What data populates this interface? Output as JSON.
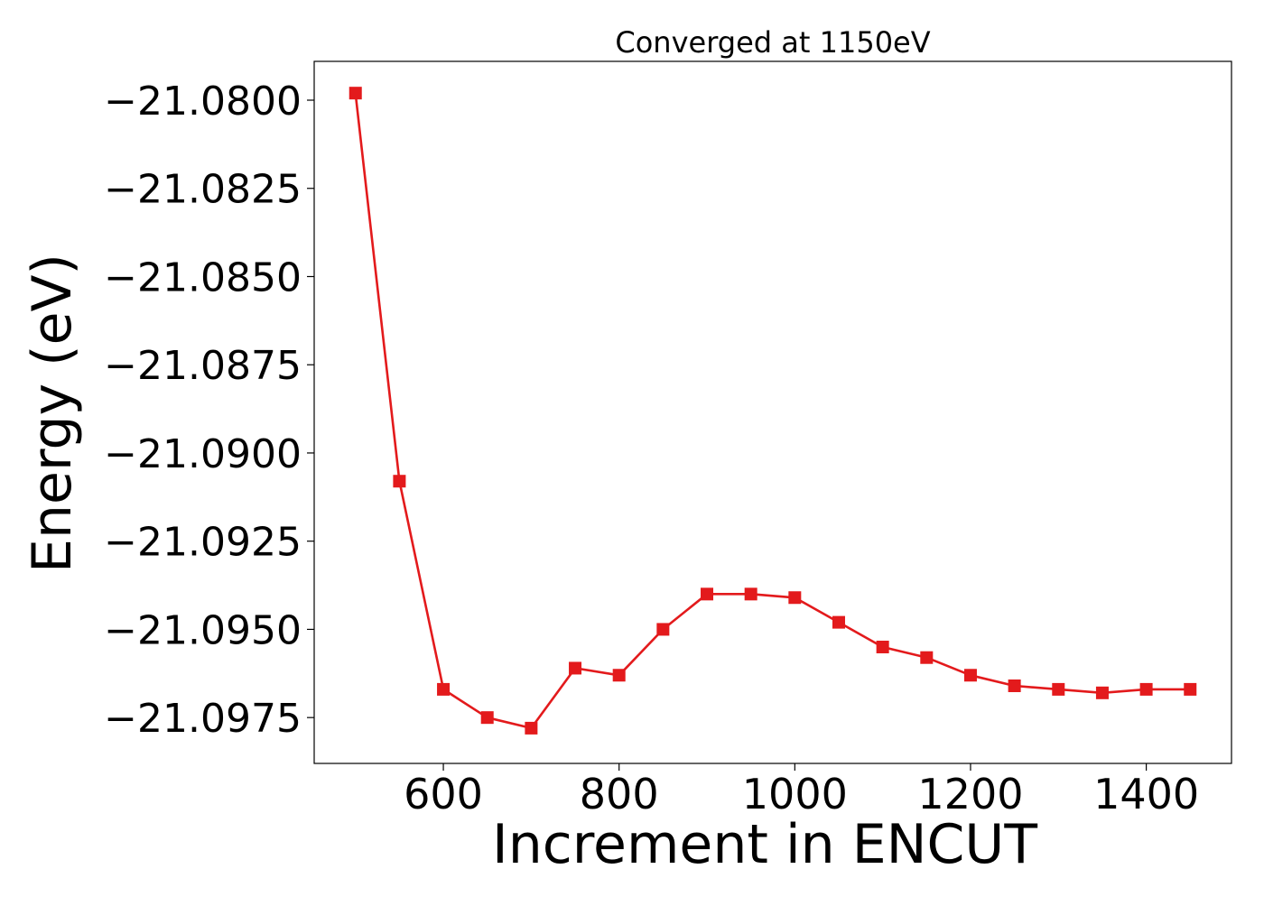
{
  "chart_data": {
    "type": "line",
    "title": "Converged at 1150eV",
    "xlabel": "Increment in ENCUT",
    "ylabel": "Energy (eV)",
    "xlim": [
      453,
      1497
    ],
    "ylim": [
      -21.0988,
      -21.0789
    ],
    "xticks": [
      600,
      800,
      1000,
      1200,
      1400
    ],
    "xtick_labels": [
      "600",
      "800",
      "1000",
      "1200",
      "1400"
    ],
    "yticks": [
      -21.08,
      -21.0825,
      -21.085,
      -21.0875,
      -21.09,
      -21.0925,
      -21.095,
      -21.0975
    ],
    "ytick_labels": [
      "−21.0800",
      "−21.0825",
      "−21.0850",
      "−21.0875",
      "−21.0900",
      "−21.0925",
      "−21.0950",
      "−21.0975"
    ],
    "grid": false,
    "series": [
      {
        "color": "#e31a1c",
        "marker": "square",
        "x": [
          500,
          550,
          600,
          650,
          700,
          750,
          800,
          850,
          900,
          950,
          1000,
          1050,
          1100,
          1150,
          1200,
          1250,
          1300,
          1350,
          1400,
          1450
        ],
        "y": [
          -21.0798,
          -21.0908,
          -21.0967,
          -21.0975,
          -21.0978,
          -21.0961,
          -21.0963,
          -21.095,
          -21.094,
          -21.094,
          -21.0941,
          -21.0948,
          -21.0955,
          -21.0958,
          -21.0963,
          -21.0966,
          -21.0967,
          -21.0968,
          -21.0967,
          -21.0967
        ]
      }
    ]
  }
}
